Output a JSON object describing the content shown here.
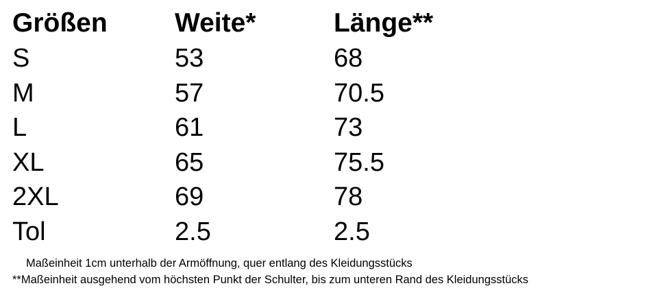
{
  "table": {
    "headers": [
      "Größen",
      "Weite*",
      "Länge**"
    ],
    "rows": [
      [
        "S",
        "53",
        "68"
      ],
      [
        "M",
        "57",
        "70.5"
      ],
      [
        "L",
        "61",
        "73"
      ],
      [
        "XL",
        "65",
        "75.5"
      ],
      [
        "2XL",
        "69",
        "78"
      ],
      [
        "Tol",
        "2.5",
        "2.5"
      ]
    ]
  },
  "notes": [
    "Maßeinheit 1cm unterhalb der Armöffnung, quer entlang des Kleidungsstücks",
    "**Maßeinheit ausgehend vom höchsten Punkt der Schulter, bis zum unteren Rand des Kleidungsstücks"
  ]
}
